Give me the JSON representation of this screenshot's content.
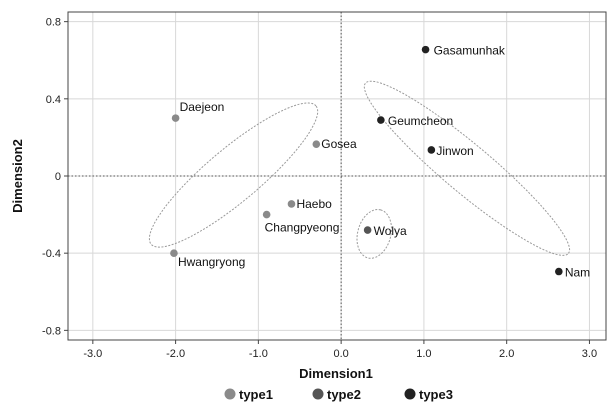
{
  "chart_data": {
    "type": "scatter",
    "xlabel": "Dimension1",
    "ylabel": "Dimension2",
    "xlim": [
      -3.3,
      3.2
    ],
    "ylim": [
      -0.85,
      0.85
    ],
    "x_ticks": [
      -3.0,
      -2.0,
      -1.0,
      0.0,
      1.0,
      2.0,
      3.0
    ],
    "x_tick_labels": [
      "-3.0",
      "-2.0",
      "-1.0",
      "0.0",
      "1.0",
      "2.0",
      "3.0"
    ],
    "y_ticks": [
      0.8,
      0.4,
      0,
      -0.4,
      -0.8
    ],
    "y_tick_labels": [
      "0.8",
      "0.4",
      "0",
      "-0.4",
      "-0.8"
    ],
    "grid": true,
    "reference_lines": {
      "x": 0,
      "y": 0
    },
    "legend_position": "bottom",
    "series": [
      {
        "name": "type1",
        "color": "#8a8a8a",
        "points": [
          {
            "label": "Daejeon",
            "x": -2.0,
            "y": 0.3
          },
          {
            "label": "Gosea",
            "x": -0.3,
            "y": 0.165
          },
          {
            "label": "Haebo",
            "x": -0.6,
            "y": -0.145
          },
          {
            "label": "Changpyeong",
            "x": -0.9,
            "y": -0.2
          },
          {
            "label": "Hwangryong",
            "x": -2.02,
            "y": -0.4
          }
        ]
      },
      {
        "name": "type2",
        "color": "#555555",
        "points": [
          {
            "label": "Wolya",
            "x": 0.32,
            "y": -0.28
          }
        ]
      },
      {
        "name": "type3",
        "color": "#222222",
        "points": [
          {
            "label": "Gasamunhak",
            "x": 1.02,
            "y": 0.655
          },
          {
            "label": "Geumcheon",
            "x": 0.48,
            "y": 0.29
          },
          {
            "label": "Jinwon",
            "x": 1.09,
            "y": 0.135
          },
          {
            "label": "Nam",
            "x": 2.63,
            "y": -0.495
          }
        ]
      }
    ],
    "ellipses": [
      {
        "cx": -1.3,
        "cy": 0.005,
        "rx": 1.3,
        "ry": 0.32,
        "angle_deg": 40
      },
      {
        "cx": 1.52,
        "cy": 0.04,
        "rx": 1.6,
        "ry": 0.29,
        "angle_deg": -40
      },
      {
        "cx": 0.4,
        "cy": -0.3,
        "rx": 0.3,
        "ry": 0.2,
        "angle_deg": 75
      }
    ]
  }
}
